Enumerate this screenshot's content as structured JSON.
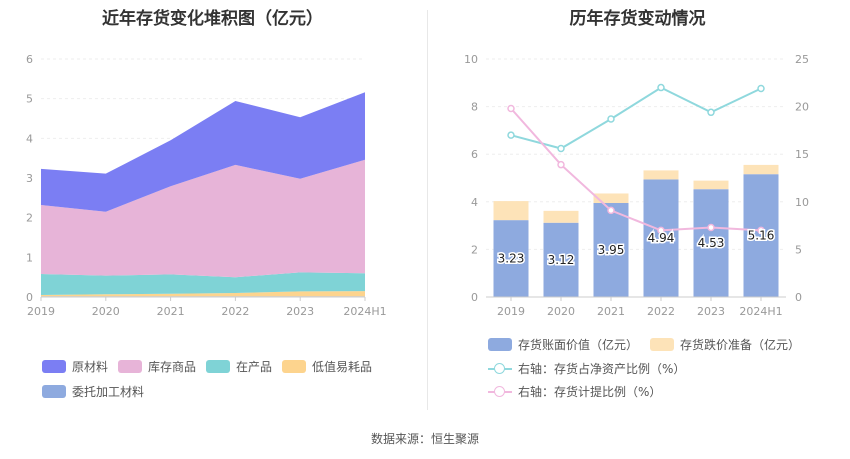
{
  "left": {
    "title": "近年存货变化堆积图（亿元）",
    "legend": [
      {
        "label": "原材料",
        "color": "#7b7ef3"
      },
      {
        "label": "库存商品",
        "color": "#e7b4d8"
      },
      {
        "label": "在产品",
        "color": "#7fd3d6"
      },
      {
        "label": "低值易耗品",
        "color": "#fdd48e"
      },
      {
        "label": "委托加工材料",
        "color": "#8eaadf"
      }
    ]
  },
  "right": {
    "title": "历年存货变动情况",
    "legend": [
      {
        "label": "存货账面价值（亿元）",
        "color": "#8eaadf",
        "kind": "bar"
      },
      {
        "label": "存货跌价准备（亿元）",
        "color": "#fde3b8",
        "kind": "bar"
      },
      {
        "label": "右轴：存货占净资产比例（%）",
        "color": "#8fd8dd",
        "kind": "line"
      },
      {
        "label": "右轴：存货计提比例（%）",
        "color": "#f1b8de",
        "kind": "line"
      }
    ]
  },
  "source": "数据来源：恒生聚源",
  "chart_data": [
    {
      "type": "area",
      "stacked": true,
      "title": "近年存货变化堆积图（亿元）",
      "categories": [
        "2019",
        "2020",
        "2021",
        "2022",
        "2023",
        "2024H1"
      ],
      "ylim": [
        0,
        6
      ],
      "yticks": [
        0,
        1,
        2,
        3,
        4,
        5,
        6
      ],
      "legend_position": "bottom",
      "series": [
        {
          "name": "委托加工材料",
          "color": "#8eaadf",
          "values": [
            0.02,
            0.02,
            0.02,
            0.02,
            0.02,
            0.02
          ]
        },
        {
          "name": "低值易耗品",
          "color": "#fdd48e",
          "values": [
            0.03,
            0.05,
            0.06,
            0.08,
            0.12,
            0.13
          ]
        },
        {
          "name": "在产品",
          "color": "#7fd3d6",
          "values": [
            0.53,
            0.47,
            0.49,
            0.4,
            0.48,
            0.45
          ]
        },
        {
          "name": "库存商品",
          "color": "#e7b4d8",
          "values": [
            1.74,
            1.61,
            2.22,
            2.83,
            2.36,
            2.86
          ]
        },
        {
          "name": "原材料",
          "color": "#7b7ef3",
          "values": [
            0.91,
            0.96,
            1.16,
            1.61,
            1.55,
            1.7
          ]
        }
      ]
    },
    {
      "type": "bar",
      "stacked": true,
      "title": "历年存货变动情况",
      "categories": [
        "2019",
        "2020",
        "2021",
        "2022",
        "2023",
        "2024H1"
      ],
      "ylim": [
        0,
        10
      ],
      "yticks": [
        0,
        2,
        4,
        6,
        8,
        10
      ],
      "y2lim": [
        0,
        25
      ],
      "y2ticks": [
        0,
        5,
        10,
        15,
        20,
        25
      ],
      "legend_position": "bottom",
      "series": [
        {
          "name": "存货账面价值（亿元）",
          "color": "#8eaadf",
          "axis": "left",
          "kind": "bar",
          "values": [
            3.23,
            3.12,
            3.95,
            4.94,
            4.53,
            5.16
          ],
          "labels": [
            "3.23",
            "3.12",
            "3.95",
            "4.94",
            "4.53",
            "5.16"
          ]
        },
        {
          "name": "存货跌价准备（亿元）",
          "color": "#fde3b8",
          "axis": "left",
          "kind": "bar",
          "values": [
            0.8,
            0.5,
            0.4,
            0.38,
            0.36,
            0.39
          ]
        },
        {
          "name": "右轴：存货占净资产比例（%）",
          "color": "#8fd8dd",
          "axis": "right",
          "kind": "line",
          "values": [
            17.0,
            15.6,
            18.7,
            22.0,
            19.4,
            21.9
          ]
        },
        {
          "name": "右轴：存货计提比例（%）",
          "color": "#f1b8de",
          "axis": "right",
          "kind": "line",
          "values": [
            19.8,
            13.9,
            9.1,
            7.0,
            7.3,
            7.0
          ]
        }
      ]
    }
  ]
}
